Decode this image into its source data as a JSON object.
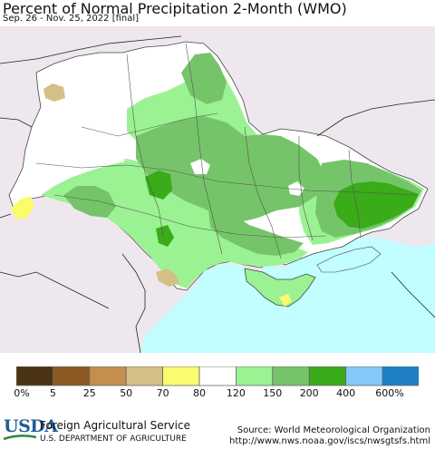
{
  "header": {
    "title": "Percent of Normal Precipitation 2-Month (WMO)",
    "subtitle": "Sep. 26 - Nov. 25, 2022 [final]"
  },
  "legend": {
    "colors": [
      "#4a3415",
      "#8b5a22",
      "#c48f4c",
      "#d4bf86",
      "#fbfb6e",
      "#ffffff",
      "#9bf293",
      "#76c46a",
      "#3aab19",
      "#84c8fa",
      "#1f80c4"
    ],
    "ticks": [
      "0%",
      "5",
      "25",
      "50",
      "70",
      "80",
      "120",
      "150",
      "200",
      "400",
      "600%"
    ]
  },
  "map": {
    "land_color": "#eee8ee",
    "sea_color": "#c2fdff",
    "region": "Ukraine"
  },
  "footer": {
    "logo_text": "USDA",
    "agency": "Foreign Agricultural Service",
    "department": "U.S. DEPARTMENT OF AGRICULTURE",
    "source_line1": "Source: World Meteorological Organization",
    "source_line2": "http://www.nws.noaa.gov/iscs/nwsgtsfs.html"
  }
}
